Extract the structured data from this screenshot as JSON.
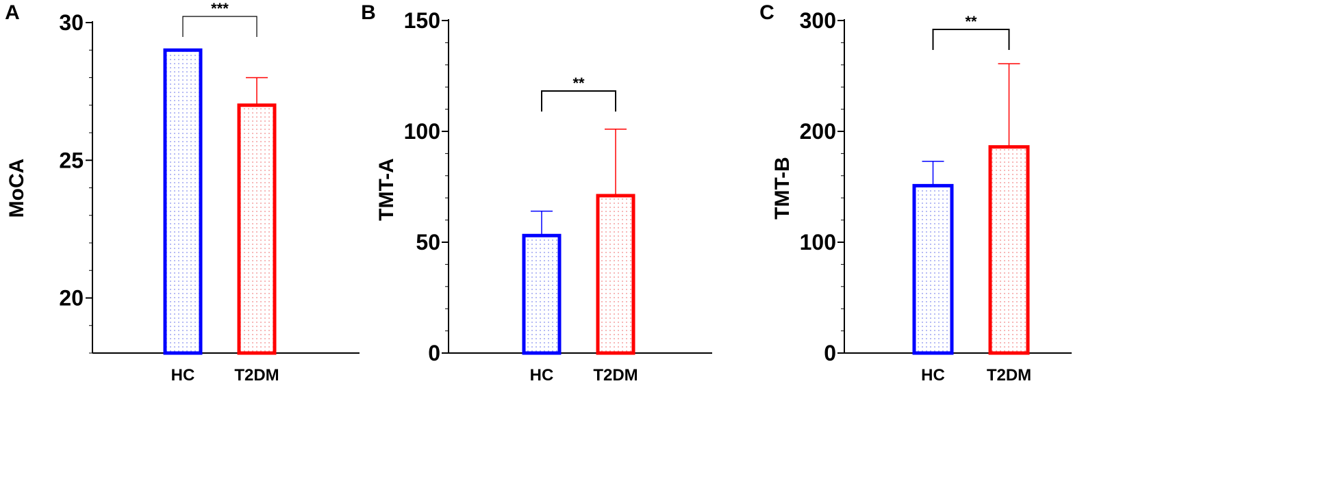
{
  "chart_data": [
    {
      "type": "bar",
      "panel": "A",
      "ylabel": "MoCA",
      "categories": [
        "HC",
        "T2DM"
      ],
      "values": [
        29,
        27
      ],
      "error_upper": [
        29,
        28
      ],
      "colors": [
        "#0000ff",
        "#ff0000"
      ],
      "ylim": [
        18,
        30
      ],
      "yticks": [
        "20",
        "25",
        "30"
      ],
      "significance": "***"
    },
    {
      "type": "bar",
      "panel": "B",
      "ylabel": "TMT-A",
      "categories": [
        "HC",
        "T2DM"
      ],
      "values": [
        53,
        71
      ],
      "error_upper": [
        64,
        101
      ],
      "colors": [
        "#0000ff",
        "#ff0000"
      ],
      "ylim": [
        0,
        150
      ],
      "yticks": [
        "0",
        "50",
        "100",
        "150"
      ],
      "significance": "**"
    },
    {
      "type": "bar",
      "panel": "C",
      "ylabel": "TMT-B",
      "categories": [
        "HC",
        "T2DM"
      ],
      "values": [
        151,
        186
      ],
      "error_upper": [
        173,
        261
      ],
      "colors": [
        "#0000ff",
        "#ff0000"
      ],
      "ylim": [
        0,
        300
      ],
      "yticks": [
        "0",
        "100",
        "200",
        "300"
      ],
      "significance": "**"
    }
  ]
}
